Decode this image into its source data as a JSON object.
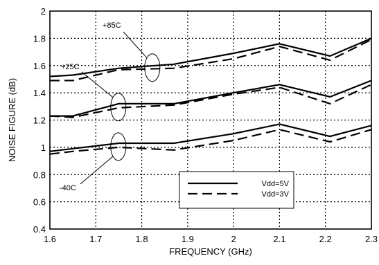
{
  "chart_data": {
    "type": "line",
    "title": "",
    "xlabel": "FREQUENCY (GHz)",
    "ylabel": "NOISE FIGURE (dB)",
    "xlim": [
      1.6,
      2.3
    ],
    "ylim": [
      0.4,
      2.0
    ],
    "xticks": [
      1.6,
      1.7,
      1.8,
      1.9,
      2.0,
      2.1,
      2.2,
      2.3
    ],
    "xtick_labels": [
      "1.6",
      "1.7",
      "1.8",
      "1.9",
      "2",
      "2.1",
      "2.2",
      "2.3"
    ],
    "yticks": [
      0.4,
      0.6,
      0.8,
      1.0,
      1.2,
      1.4,
      1.6,
      1.8,
      2.0
    ],
    "ytick_labels": [
      "0.4",
      "0.6",
      "0.8",
      "1",
      "1.2",
      "1.4",
      "1.6",
      "1.8",
      "2"
    ],
    "grid": true,
    "grid_style": "dotted",
    "legend_position": "bottom-right",
    "legend": [
      {
        "label": "Vdd=5V",
        "style": "solid"
      },
      {
        "label": "Vdd=3V",
        "style": "dashed"
      }
    ],
    "series": [
      {
        "voltage": "5V",
        "temperature": "+85C",
        "style": "solid",
        "x": [
          1.6,
          1.65,
          1.75,
          1.87,
          2.0,
          2.1,
          2.21,
          2.3
        ],
        "y": [
          1.52,
          1.53,
          1.58,
          1.61,
          1.69,
          1.76,
          1.67,
          1.8
        ]
      },
      {
        "voltage": "3V",
        "temperature": "+85C",
        "style": "dashed",
        "x": [
          1.6,
          1.65,
          1.75,
          1.87,
          2.0,
          2.1,
          2.21,
          2.3
        ],
        "y": [
          1.49,
          1.49,
          1.57,
          1.58,
          1.65,
          1.74,
          1.64,
          1.79
        ]
      },
      {
        "voltage": "5V",
        "temperature": "+25C",
        "style": "solid",
        "x": [
          1.6,
          1.65,
          1.75,
          1.87,
          2.0,
          2.1,
          2.21,
          2.3
        ],
        "y": [
          1.23,
          1.23,
          1.32,
          1.32,
          1.4,
          1.46,
          1.37,
          1.49
        ]
      },
      {
        "voltage": "3V",
        "temperature": "+25C",
        "style": "dashed",
        "x": [
          1.6,
          1.65,
          1.75,
          1.87,
          2.0,
          2.1,
          2.21,
          2.3
        ],
        "y": [
          1.23,
          1.22,
          1.29,
          1.31,
          1.39,
          1.44,
          1.32,
          1.46
        ]
      },
      {
        "voltage": "5V",
        "temperature": "-40C",
        "style": "solid",
        "x": [
          1.6,
          1.65,
          1.75,
          1.87,
          2.0,
          2.1,
          2.21,
          2.3
        ],
        "y": [
          0.97,
          0.99,
          1.03,
          1.03,
          1.1,
          1.17,
          1.08,
          1.16
        ]
      },
      {
        "voltage": "3V",
        "temperature": "-40C",
        "style": "dashed",
        "x": [
          1.6,
          1.65,
          1.75,
          1.87,
          2.0,
          2.1,
          2.21,
          2.3
        ],
        "y": [
          0.95,
          0.97,
          1.0,
          0.98,
          1.05,
          1.13,
          1.04,
          1.13
        ]
      }
    ],
    "annotations": [
      {
        "text": "+85C",
        "ellipse_x": 1.823,
        "ellipse_y": 1.585
      },
      {
        "text": "+25C",
        "ellipse_x": 1.749,
        "ellipse_y": 1.295
      },
      {
        "text": "-40C",
        "ellipse_x": 1.749,
        "ellipse_y": 1.005
      }
    ]
  }
}
